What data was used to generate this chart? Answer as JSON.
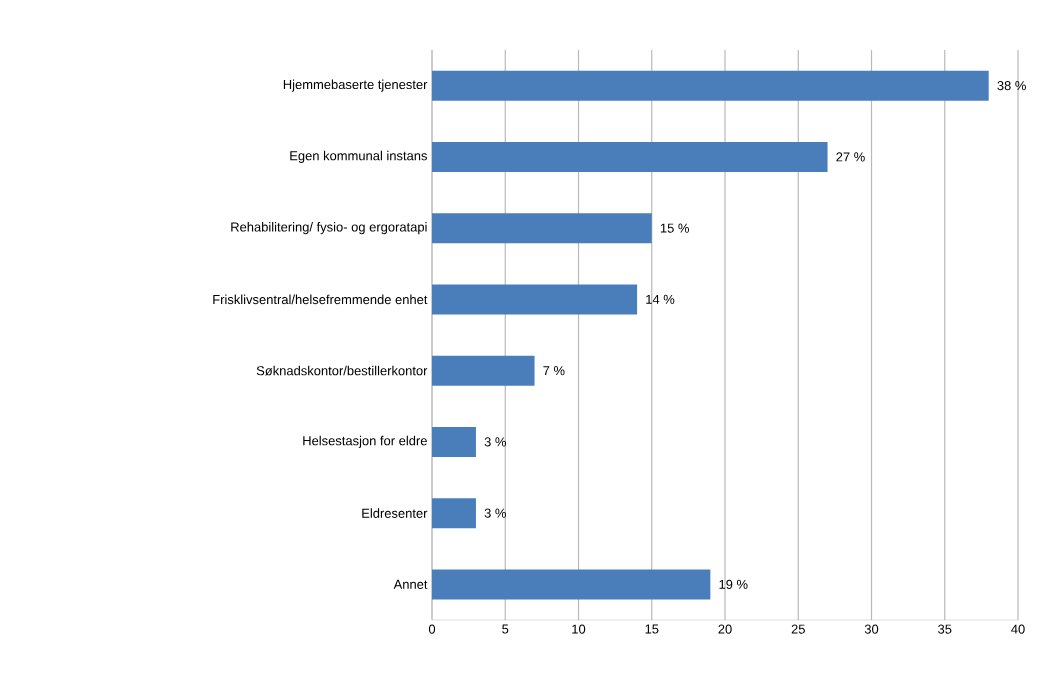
{
  "chart_data": {
    "type": "bar",
    "orientation": "horizontal",
    "categories": [
      "Hjemmebaserte tjenester",
      "Egen kommunal instans",
      "Rehabilitering/ fysio- og ergoratapi",
      "Frisklivsentral/helsefremmende enhet",
      "Søknadskontor/bestillerkontor",
      "Helsestasjon for eldre",
      "Eldresenter",
      "Annet"
    ],
    "values": [
      38,
      27,
      15,
      14,
      7,
      3,
      3,
      19
    ],
    "value_labels": [
      "38 %",
      "27 %",
      "15 %",
      "14 %",
      "7 %",
      "3 %",
      "3 %",
      "19 %"
    ],
    "color": "#4a7ebb",
    "xlim": [
      0,
      40
    ],
    "xticks": [
      0,
      5,
      10,
      15,
      20,
      25,
      30,
      35,
      40
    ],
    "grid": "x"
  }
}
